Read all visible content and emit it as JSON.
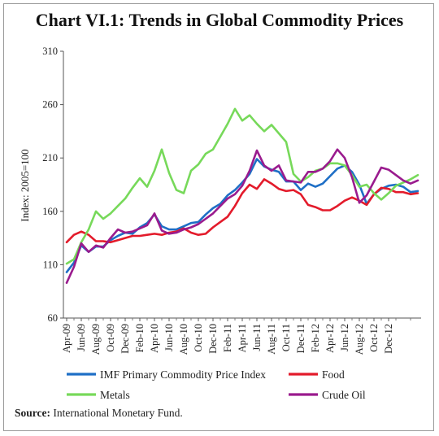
{
  "title": "Chart VI.1: Trends in Global Commodity Prices",
  "source_label": "Source:",
  "source_text": "International Monetary Fund.",
  "chart_data": {
    "type": "line",
    "ylabel": "Index: 2005=100",
    "ylim": [
      60,
      310
    ],
    "yticks": [
      60,
      110,
      160,
      210,
      260,
      310
    ],
    "x_tick_labels": [
      "Apr-09",
      "Jun-09",
      "Aug-09",
      "Oct-09",
      "Dec-09",
      "Feb-10",
      "Apr-10",
      "Jun-10",
      "Aug-10",
      "Oct-10",
      "Dec-10",
      "Feb-11",
      "Apr-11",
      "Jun-11",
      "Aug-11",
      "Oct-11",
      "Dec-11",
      "Feb-12",
      "Apr-12",
      "Jun-12",
      "Aug-12",
      "Oct-12",
      "Dec-12"
    ],
    "legend_position": "bottom",
    "series": [
      {
        "name": "IMF Primary Commodity Price Index",
        "color": "#1f6fc6",
        "values": [
          103,
          112,
          128,
          122,
          127,
          127,
          133,
          137,
          140,
          139,
          145,
          149,
          157,
          146,
          143,
          143,
          146,
          149,
          150,
          157,
          163,
          167,
          175,
          180,
          187,
          195,
          209,
          202,
          199,
          197,
          188,
          188,
          180,
          186,
          183,
          186,
          193,
          200,
          203,
          197,
          185,
          167,
          176,
          181,
          184,
          185,
          183,
          178,
          179
        ]
      },
      {
        "name": "Food",
        "color": "#e31b2b",
        "values": [
          131,
          138,
          141,
          138,
          132,
          132,
          131,
          133,
          135,
          137,
          137,
          138,
          139,
          138,
          140,
          141,
          144,
          140,
          138,
          139,
          145,
          150,
          155,
          165,
          177,
          185,
          181,
          190,
          186,
          181,
          179,
          180,
          176,
          166,
          164,
          161,
          161,
          165,
          170,
          173,
          170,
          166,
          176,
          182,
          181,
          178,
          178,
          176,
          177
        ]
      },
      {
        "name": "Metals",
        "color": "#77d95a",
        "values": [
          111,
          115,
          131,
          143,
          160,
          153,
          158,
          165,
          172,
          182,
          191,
          183,
          198,
          218,
          196,
          180,
          177,
          198,
          204,
          214,
          218,
          230,
          242,
          256,
          245,
          250,
          242,
          235,
          241,
          233,
          225,
          195,
          188,
          192,
          198,
          200,
          205,
          205,
          203,
          194,
          183,
          185,
          177,
          171,
          177,
          184,
          187,
          190,
          194
        ]
      },
      {
        "name": "Crude Oil",
        "color": "#9a1b8e",
        "values": [
          93,
          108,
          130,
          122,
          128,
          126,
          135,
          143,
          140,
          141,
          144,
          147,
          158,
          142,
          139,
          140,
          143,
          145,
          148,
          153,
          158,
          165,
          172,
          176,
          184,
          198,
          217,
          203,
          198,
          203,
          189,
          188,
          187,
          197,
          197,
          200,
          207,
          218,
          210,
          192,
          168,
          175,
          188,
          201,
          199,
          194,
          189,
          186,
          189
        ]
      }
    ]
  }
}
